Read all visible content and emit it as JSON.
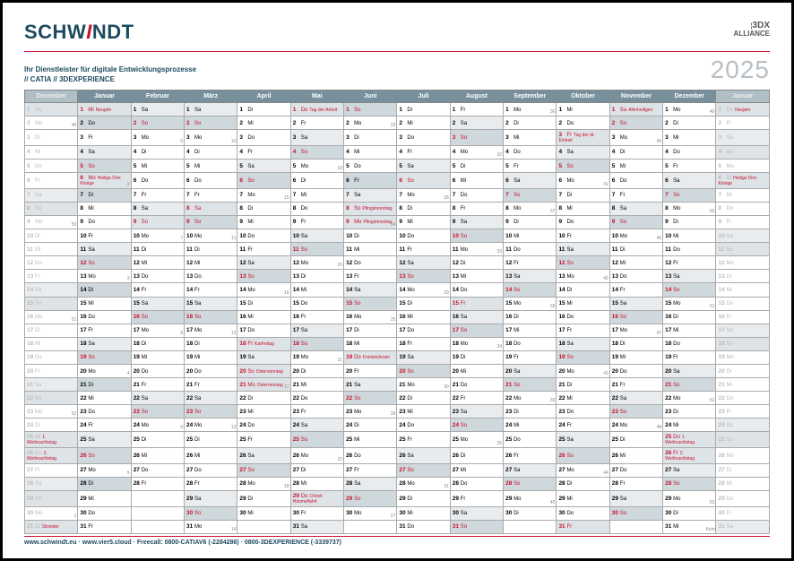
{
  "brand": {
    "name_pre": "SCHW",
    "name_accent": "I",
    "name_post": "NDT"
  },
  "alliance": {
    "line1": "3DX",
    "line2": "ALLIANCE"
  },
  "tagline": {
    "line1": "Ihr Dienstleister für digitale Entwicklungsprozesse",
    "line2": "// CATIA // 3DEXPERIENCE"
  },
  "year": "2025",
  "months": [
    {
      "label": "Dezember",
      "muted": true
    },
    {
      "label": "Januar",
      "muted": false
    },
    {
      "label": "Februar",
      "muted": false
    },
    {
      "label": "März",
      "muted": false
    },
    {
      "label": "April",
      "muted": false
    },
    {
      "label": "Mai",
      "muted": false
    },
    {
      "label": "Juni",
      "muted": false
    },
    {
      "label": "Juli",
      "muted": false
    },
    {
      "label": "August",
      "muted": false
    },
    {
      "label": "September",
      "muted": false
    },
    {
      "label": "Oktober",
      "muted": false
    },
    {
      "label": "November",
      "muted": false
    },
    {
      "label": "Dezember",
      "muted": false
    },
    {
      "label": "Januar",
      "muted": true
    }
  ],
  "footer": "www.schwindt.eu · www.vier5.cloud · Freecall: 0800-CATIAV6 (-2284286) · 0800-3DEXPERIENCE (-3339737)",
  "disclaimer": "Keine Gewähr für die Richtigkeit",
  "weekdays": [
    "Mo",
    "Di",
    "Mi",
    "Do",
    "Fr",
    "Sa",
    "So"
  ],
  "colors": {
    "brand": "#1e4a5f",
    "accent": "#c8102e",
    "header_bg": "#78909c",
    "header_muted": "#b0bec5",
    "sat": "#e8ecef",
    "sun": "#dde3e7",
    "box": "#cfd8dc",
    "year_gray": "#b8bfc4"
  },
  "month_starts_weekday": [
    6,
    2,
    5,
    5,
    1,
    3,
    6,
    1,
    4,
    0,
    2,
    5,
    0,
    3
  ],
  "month_lengths": [
    31,
    31,
    28,
    31,
    30,
    31,
    30,
    31,
    31,
    30,
    31,
    30,
    31,
    31
  ],
  "holidays": {
    "0": {
      "1": "",
      "25": "1. Weihnachtstag",
      "26": "2. Weihnachtstag",
      "31": "Silvester"
    },
    "1": {
      "1": "Neujahr",
      "6": "Heilige Drei Könige"
    },
    "2": {},
    "3": {
      "8": ""
    },
    "4": {
      "18": "Karfreitag",
      "20": "Ostersonntag",
      "21": "Ostermontag"
    },
    "5": {
      "1": "Tag der Arbeit",
      "29": "Christi Himmelfahrt"
    },
    "6": {
      "8": "Pfingstsonntag",
      "9": "Pfingstmontag",
      "19": "Fronleichnam"
    },
    "7": {},
    "8": {
      "15": ""
    },
    "9": {},
    "10": {
      "3": "Tag der dt. Einheit",
      "31": ""
    },
    "11": {
      "1": "Allerheiligen"
    },
    "12": {
      "25": "1. Weihnachtstag",
      "26": "2. Weihnachtstag"
    },
    "13": {
      "1": "Neujahr",
      "6": "Heilige Drei Könige"
    }
  },
  "boxed_days": {
    "1": [
      2,
      5,
      7,
      12,
      14,
      19,
      21,
      26,
      28
    ],
    "2": [
      2,
      16,
      23
    ],
    "3": [
      2,
      9,
      16,
      23,
      30
    ],
    "4": [
      6,
      13,
      27
    ],
    "5": [
      4,
      11,
      18,
      25
    ],
    "6": [
      1,
      6,
      15,
      22,
      29
    ],
    "7": [
      13,
      20,
      27
    ],
    "8": [
      3,
      10,
      17,
      24,
      31
    ],
    "9": [
      7,
      14,
      21,
      28
    ],
    "10": [
      5,
      12,
      19,
      26
    ],
    "11": [
      2,
      9,
      16,
      23,
      30
    ],
    "12": [
      7,
      14,
      21,
      28
    ]
  },
  "week_numbers_start": 49
}
